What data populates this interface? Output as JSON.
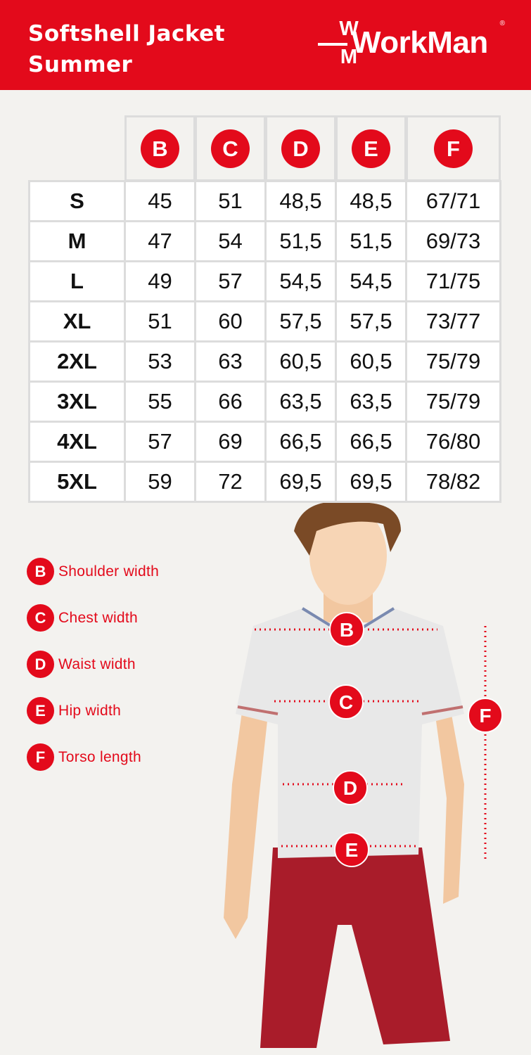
{
  "header": {
    "title_line1": "Softshell Jacket",
    "title_line2": "Summer",
    "brand": "WorkMan",
    "brand_mark_top": "W",
    "brand_mark_bottom": "M",
    "registered": "®"
  },
  "colors": {
    "brand_red": "#e30a1b",
    "background": "#f3f2ef",
    "grid": "#dcdcdc"
  },
  "table": {
    "columns": [
      "B",
      "C",
      "D",
      "E",
      "F"
    ],
    "rows": [
      {
        "size": "S",
        "values": [
          "45",
          "51",
          "48,5",
          "48,5",
          "67/71"
        ]
      },
      {
        "size": "M",
        "values": [
          "47",
          "54",
          "51,5",
          "51,5",
          "69/73"
        ]
      },
      {
        "size": "L",
        "values": [
          "49",
          "57",
          "54,5",
          "54,5",
          "71/75"
        ]
      },
      {
        "size": "XL",
        "values": [
          "51",
          "60",
          "57,5",
          "57,5",
          "73/77"
        ]
      },
      {
        "size": "2XL",
        "values": [
          "53",
          "63",
          "60,5",
          "60,5",
          "75/79"
        ]
      },
      {
        "size": "3XL",
        "values": [
          "55",
          "66",
          "63,5",
          "63,5",
          "75/79"
        ]
      },
      {
        "size": "4XL",
        "values": [
          "57",
          "69",
          "66,5",
          "66,5",
          "76/80"
        ]
      },
      {
        "size": "5XL",
        "values": [
          "59",
          "72",
          "69,5",
          "69,5",
          "78/82"
        ]
      }
    ]
  },
  "legend": [
    {
      "key": "B",
      "label": "Shoulder width"
    },
    {
      "key": "C",
      "label": "Chest width"
    },
    {
      "key": "D",
      "label": "Waist width"
    },
    {
      "key": "E",
      "label": "Hip width"
    },
    {
      "key": "F",
      "label": "Torso length"
    }
  ],
  "figure": {
    "markers": [
      "B",
      "C",
      "D",
      "E",
      "F"
    ]
  }
}
